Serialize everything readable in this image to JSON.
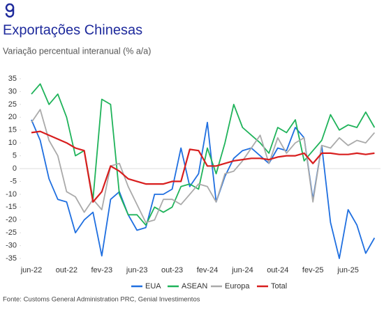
{
  "chart_data": {
    "type": "line",
    "title": "Exportações Chinesas",
    "subtitle": "Variação percentual interanual (% a/a)",
    "source": "Fonte: Customs General Administration PRC, Genial Investimentos",
    "categories": [
      "jun-22",
      null,
      null,
      null,
      "out-22",
      null,
      null,
      null,
      "fev-23",
      null,
      null,
      null,
      "jun-23",
      null,
      null,
      null,
      "out-23",
      null,
      null,
      null,
      "fev-24",
      null,
      null,
      null,
      "jun-24",
      null,
      null,
      null,
      "out-24",
      null,
      null,
      null,
      "fev-25",
      null,
      null,
      null,
      "jun-25",
      null,
      null,
      null
    ],
    "ylim": [
      -35,
      35
    ],
    "yticks": [
      35,
      30,
      25,
      20,
      15,
      10,
      5,
      0,
      -5,
      -10,
      -15,
      -20,
      -25,
      -30,
      -35
    ],
    "legend": "bottom",
    "series": [
      {
        "name": "EUA",
        "color": "#1f6fe0",
        "values": [
          19,
          11,
          -4,
          -12,
          -13,
          -25,
          -20,
          -17,
          -34,
          -12,
          -9,
          -18,
          -24,
          -23,
          -10,
          -10,
          -8,
          8,
          -7,
          -2,
          18,
          -13,
          -3,
          4,
          7,
          8,
          5,
          2,
          8,
          7,
          16,
          12,
          -12,
          9,
          -21,
          -35,
          -16,
          -22,
          -33,
          -27
        ]
      },
      {
        "name": "ASEAN",
        "color": "#1fb35a",
        "values": [
          29,
          33,
          25,
          29,
          20,
          5,
          7,
          -12,
          27,
          25,
          -10,
          -18,
          -18,
          -22,
          -15,
          -17,
          -15,
          -7,
          -6,
          -8,
          8,
          -2,
          10,
          25,
          16,
          13,
          10,
          6,
          16,
          14,
          19,
          3,
          7,
          11,
          21,
          15,
          17,
          16,
          22,
          16
        ]
      },
      {
        "name": "Europa",
        "color": "#aaaaaa",
        "values": [
          18,
          23,
          11,
          5,
          -9,
          -11,
          -17,
          -12,
          -16,
          1,
          2,
          -7,
          -14,
          -21,
          -20,
          -12,
          -12,
          -14,
          -10,
          -6,
          -7,
          -13,
          -2,
          -1,
          3,
          8,
          13,
          2,
          12,
          6,
          10,
          12,
          -13,
          9,
          8,
          12,
          9,
          11,
          10,
          14
        ]
      },
      {
        "name": "Total",
        "color": "#d81e1e",
        "values": [
          14,
          14.5,
          13,
          11.5,
          10,
          8,
          7,
          -13,
          -9,
          1,
          -1,
          -4,
          -5,
          -6,
          -6,
          -6,
          -5,
          -5,
          7.5,
          7,
          1,
          1,
          2,
          3,
          3.5,
          4,
          4,
          3.5,
          4.5,
          5,
          5,
          6,
          2,
          6,
          6,
          5.5,
          5.5,
          6,
          5.5,
          6
        ]
      }
    ]
  }
}
